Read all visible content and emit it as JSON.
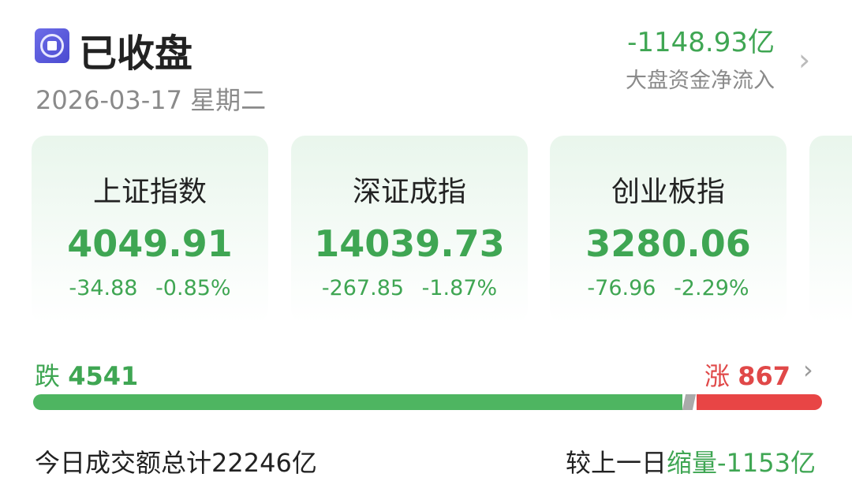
{
  "header": {
    "status_icon": "market-closed-icon",
    "title": "已收盘",
    "date": "2026-03-17",
    "weekday": "星期二"
  },
  "fund_flow": {
    "value": "-1148.93亿",
    "label": "大盘资金净流入"
  },
  "indices": [
    {
      "name": "上证指数",
      "value": "4049.91",
      "change": "-34.88",
      "percent": "-0.85%"
    },
    {
      "name": "深证成指",
      "value": "14039.73",
      "change": "-267.85",
      "percent": "-1.87%"
    },
    {
      "name": "创业板指",
      "value": "3280.06",
      "change": "-76.96",
      "percent": "-2.29%"
    }
  ],
  "breadth": {
    "fall_label": "跌",
    "fall_count": "4541",
    "rise_label": "涨",
    "rise_count": "867"
  },
  "turnover": {
    "label": "今日成交额总计",
    "value": "22246亿",
    "compare_label": "较上一日",
    "compare_type": "缩量",
    "compare_value": "-1153亿"
  },
  "colors": {
    "down": "#3fa653",
    "up": "#e04848",
    "flat": "#aaaaaa"
  }
}
